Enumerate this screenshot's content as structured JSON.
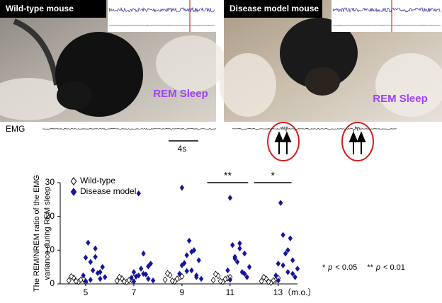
{
  "panels": [
    {
      "label": "Wild-type mouse",
      "state": "REM Sleep"
    },
    {
      "label": "Disease model mouse",
      "state": "REM Sleep"
    }
  ],
  "emg_label": "EMG",
  "scale_bar": "4s",
  "chart_data": {
    "type": "scatter",
    "ylabel_lines": [
      "The REM/NREM ratio of the EMG",
      "variance during REM sleep"
    ],
    "xlim": [
      4,
      13.8
    ],
    "xticks": [
      5,
      7,
      9,
      11,
      {
        "value": 13,
        "label": "13（m.o.）"
      }
    ],
    "ylim": [
      0,
      30
    ],
    "yticks": [
      0,
      10,
      20,
      30
    ],
    "legend": "top-left",
    "series": [
      {
        "name": "Wild-type",
        "color": "#000000",
        "marker": "open",
        "x": [
          4.3,
          4.5,
          4.7,
          4.9,
          4.4,
          4.6,
          4.8,
          5.0,
          6.3,
          6.5,
          6.7,
          6.9,
          6.4,
          6.6,
          6.8,
          7.0,
          8.3,
          8.5,
          8.7,
          8.9,
          8.4,
          8.6,
          8.8,
          9.0,
          10.3,
          10.5,
          10.7,
          10.9,
          10.4,
          10.6,
          10.8,
          11.0,
          12.3,
          12.5,
          12.7,
          12.9,
          12.4,
          12.6,
          12.8,
          13.0
        ],
        "values": [
          1.0,
          1.8,
          0.6,
          1.5,
          2.2,
          0.8,
          1.2,
          0.5,
          0.9,
          1.6,
          0.5,
          1.3,
          2.0,
          0.7,
          1.1,
          1.8,
          1.2,
          2.6,
          0.7,
          1.9,
          3.1,
          0.9,
          1.5,
          2.2,
          1.1,
          2.4,
          0.6,
          1.7,
          2.9,
          0.8,
          1.4,
          2.0,
          0.8,
          1.5,
          0.4,
          1.2,
          2.0,
          0.6,
          1.0,
          1.7
        ]
      },
      {
        "name": "Disease model",
        "color": "#1414a0",
        "marker": "filled",
        "x": [
          4.9,
          5.0,
          5.1,
          5.2,
          5.3,
          5.4,
          5.5,
          5.6,
          5.7,
          5.8,
          5.0,
          5.2,
          5.4,
          5.6,
          6.9,
          7.0,
          7.1,
          7.2,
          7.3,
          7.4,
          7.5,
          7.6,
          7.7,
          7.8,
          7.0,
          7.2,
          7.4,
          7.6,
          8.9,
          9.0,
          9.1,
          9.2,
          9.3,
          9.4,
          9.5,
          9.6,
          9.7,
          9.8,
          9.0,
          9.2,
          9.4,
          9.6,
          10.9,
          11.0,
          11.1,
          11.2,
          11.3,
          11.4,
          11.5,
          11.6,
          11.7,
          11.8,
          11.0,
          11.2,
          11.4,
          11.6,
          12.9,
          13.0,
          13.1,
          13.2,
          13.3,
          13.4,
          13.5,
          13.6,
          13.7,
          13.8,
          13.0,
          13.2,
          13.4,
          13.6
        ],
        "values": [
          2.5,
          7.8,
          12.2,
          6.5,
          4.0,
          10.5,
          3.2,
          1.5,
          5.0,
          2.0,
          0.8,
          1.2,
          8.0,
          3.5,
          1.8,
          3.5,
          2.2,
          26.8,
          4.5,
          9.0,
          2.8,
          1.5,
          6.0,
          1.0,
          0.7,
          2.5,
          3.0,
          5.2,
          3.0,
          28.5,
          6.2,
          8.5,
          12.8,
          4.0,
          10.0,
          2.5,
          7.0,
          1.5,
          5.5,
          3.8,
          9.5,
          2.0,
          4.0,
          25.5,
          11.5,
          8.0,
          6.5,
          12.0,
          3.5,
          9.0,
          2.0,
          5.0,
          1.2,
          7.5,
          10.5,
          3.0,
          2.5,
          6.0,
          24.0,
          14.5,
          9.0,
          3.5,
          13.5,
          7.0,
          2.0,
          4.5,
          1.0,
          5.5,
          10.0,
          3.0
        ]
      }
    ],
    "significance": [
      {
        "label": "**",
        "x": [
          10.05,
          11.75
        ],
        "y": 30
      },
      {
        "label": "*",
        "x": [
          12.0,
          13.55
        ],
        "y": 30
      }
    ],
    "notes": [
      {
        "mark": "*",
        "var": "p",
        "text": "< 0.05"
      },
      {
        "mark": "**",
        "var": "p",
        "text": "< 0.01"
      }
    ]
  }
}
